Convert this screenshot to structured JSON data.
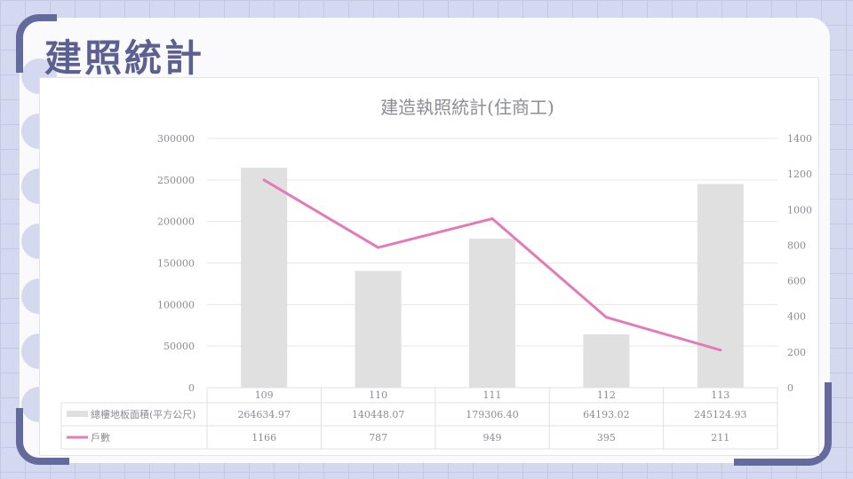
{
  "page": {
    "title": "建照統計"
  },
  "chart_data": {
    "type": "bar",
    "title": "建造執照統計(住商工)",
    "categories": [
      "109",
      "110",
      "111",
      "112",
      "113"
    ],
    "series": [
      {
        "name": "總樓地板面積(平方公尺)",
        "type": "bar",
        "axis": "left",
        "color": "#e0e0e0",
        "values": [
          264634.97,
          140448.07,
          179306.4,
          64193.02,
          245124.93
        ],
        "labels": [
          "264634.97",
          "140448.07",
          "179306.40",
          "64193.02",
          "245124.93"
        ]
      },
      {
        "name": "戶數",
        "type": "line",
        "axis": "right",
        "color": "#e27bb8",
        "values": [
          1166,
          787,
          949,
          395,
          211
        ],
        "labels": [
          "1166",
          "787",
          "949",
          "395",
          "211"
        ]
      }
    ],
    "y_left": {
      "min": 0,
      "max": 300000,
      "ticks": [
        "0",
        "50000",
        "100000",
        "150000",
        "200000",
        "250000",
        "300000"
      ]
    },
    "y_right": {
      "min": 0,
      "max": 1400,
      "ticks": [
        "0",
        "200",
        "400",
        "600",
        "800",
        "1000",
        "1200",
        "1400"
      ]
    },
    "grid": true,
    "legend": "data-table-below"
  }
}
